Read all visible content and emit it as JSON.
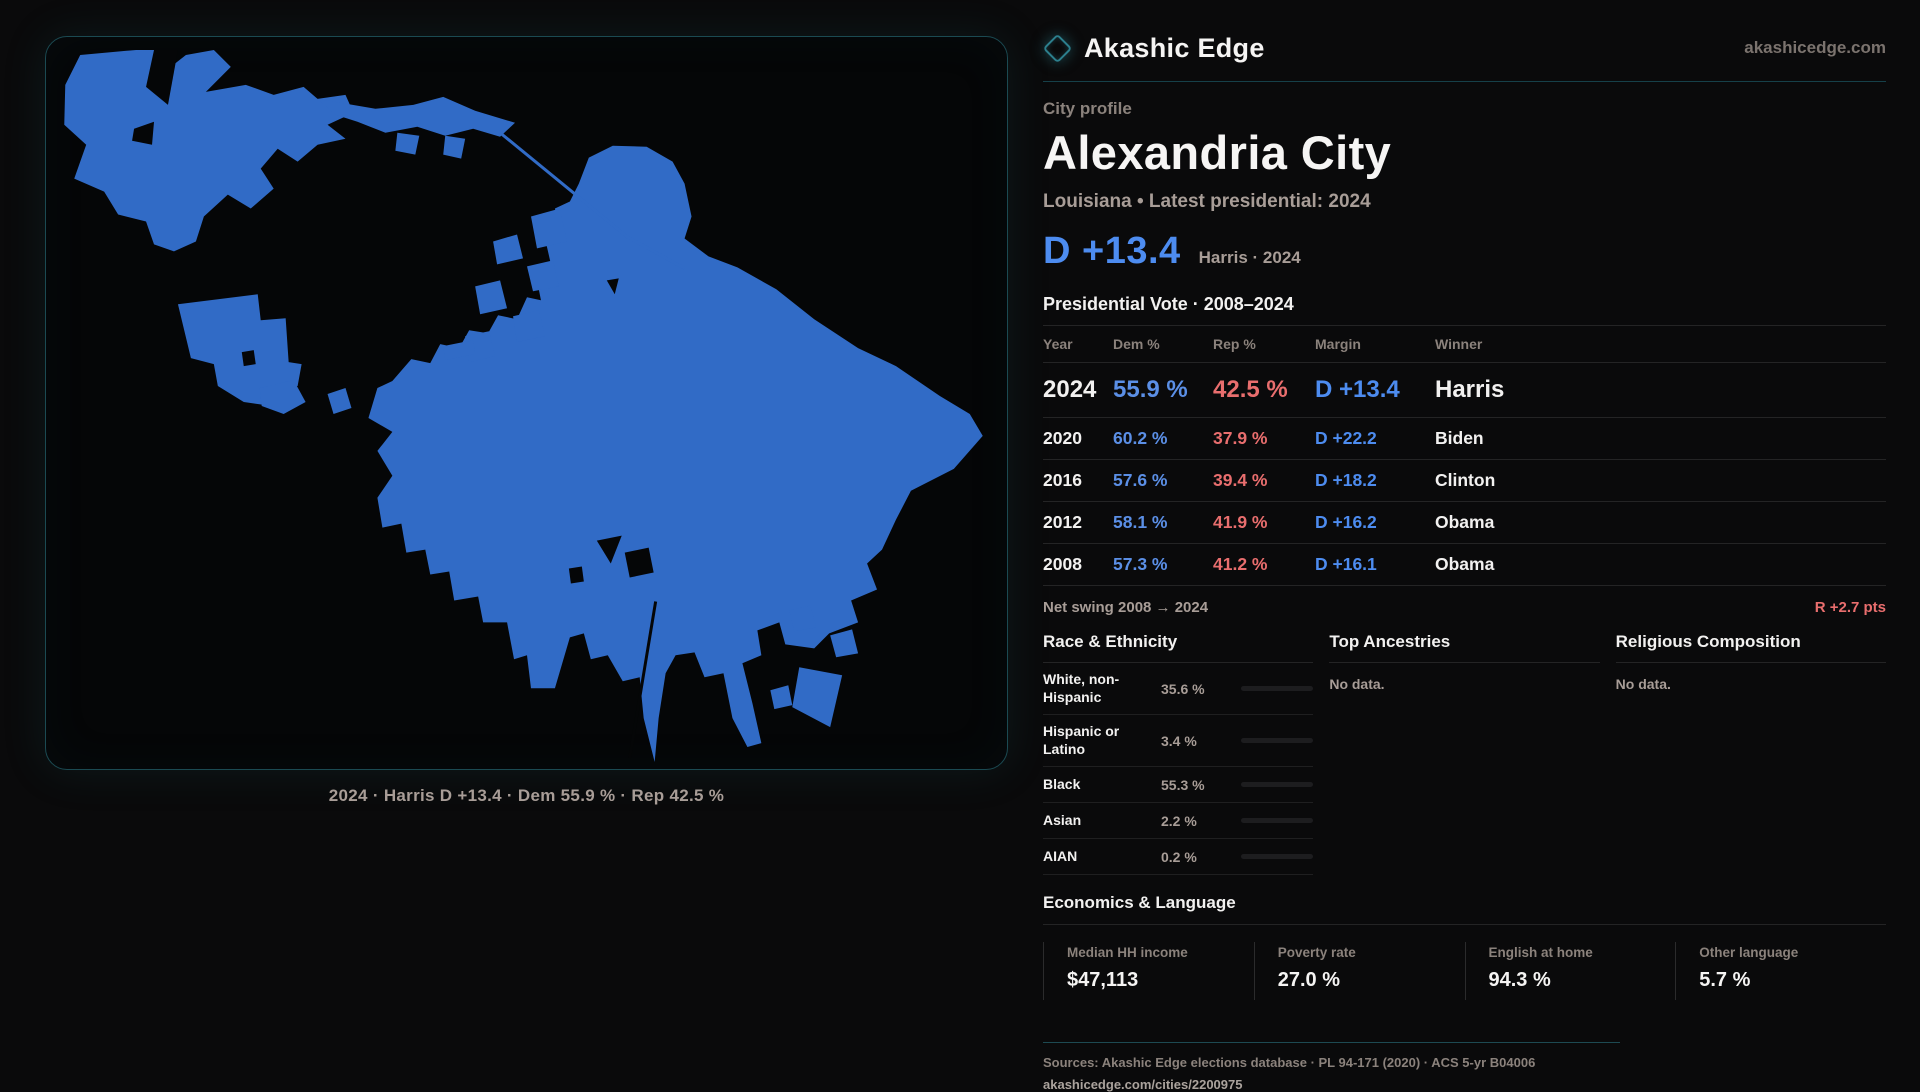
{
  "brand": {
    "name": "Akashic Edge",
    "domain": "akashicedge.com"
  },
  "profile": {
    "kicker": "City profile",
    "title": "Alexandria City",
    "subtitle": "Louisiana • Latest presidential: 2024",
    "headline_margin": "D +13.4",
    "headline_detail": "Harris · 2024"
  },
  "map": {
    "caption": "2024 · Harris D +13.4 · Dem 55.9 % · Rep 42.5 %"
  },
  "elections": {
    "title": "Presidential Vote · 2008–2024",
    "columns": [
      "Year",
      "Dem %",
      "Rep %",
      "Margin",
      "Winner"
    ],
    "rows": [
      {
        "year": "2024",
        "dem": "55.9 %",
        "rep": "42.5 %",
        "margin": "D +13.4",
        "winner": "Harris"
      },
      {
        "year": "2020",
        "dem": "60.2 %",
        "rep": "37.9 %",
        "margin": "D +22.2",
        "winner": "Biden"
      },
      {
        "year": "2016",
        "dem": "57.6 %",
        "rep": "39.4 %",
        "margin": "D +18.2",
        "winner": "Clinton"
      },
      {
        "year": "2012",
        "dem": "58.1 %",
        "rep": "41.9 %",
        "margin": "D +16.2",
        "winner": "Obama"
      },
      {
        "year": "2008",
        "dem": "57.3 %",
        "rep": "41.2 %",
        "margin": "D +16.1",
        "winner": "Obama"
      }
    ],
    "net_swing_label": "Net swing 2008 → 2024",
    "net_swing_value": "R +2.7 pts"
  },
  "race": {
    "title": "Race & Ethnicity",
    "rows": [
      {
        "label": "White, non-Hispanic",
        "value": "35.6 %",
        "pct": 35.6,
        "color": "#8da4bf"
      },
      {
        "label": "Hispanic or Latino",
        "value": "3.4 %",
        "pct": 3.4,
        "color": "#e8930e"
      },
      {
        "label": "Black",
        "value": "55.3 %",
        "pct": 55.3,
        "color": "#9d85ed"
      },
      {
        "label": "Asian",
        "value": "2.2 %",
        "pct": 2.2,
        "color": "#2cc07a"
      },
      {
        "label": "AIAN",
        "value": "0.2 %",
        "pct": 0.2,
        "color": "#6a6a6d"
      }
    ]
  },
  "ancestries": {
    "title": "Top Ancestries",
    "empty": "No data."
  },
  "religion": {
    "title": "Religious Composition",
    "empty": "No data."
  },
  "economics": {
    "title": "Economics & Language",
    "stats": [
      {
        "label": "Median HH income",
        "value": "$47,113"
      },
      {
        "label": "Poverty rate",
        "value": "27.0 %"
      },
      {
        "label": "English at home",
        "value": "94.3 %"
      },
      {
        "label": "Other language",
        "value": "5.7 %"
      }
    ]
  },
  "footer": {
    "sources": "Sources: Akashic Edge elections database · PL 94-171 (2020) · ACS 5-yr B04006",
    "permalink": "akashicedge.com/cities/2200975"
  },
  "colors": {
    "accent_teal": "#2c7f8d",
    "dem_blue": "#5b8fe6",
    "rep_red": "#e96e6e",
    "headline_blue": "#4d8cf0",
    "map_blue": "#316bc6"
  }
}
